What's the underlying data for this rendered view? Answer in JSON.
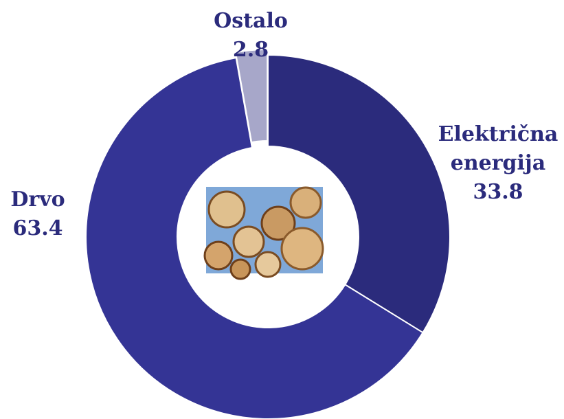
{
  "chart_data": {
    "type": "donut",
    "categories": [
      "Električna energija",
      "Drvo",
      "Ostalo"
    ],
    "values": [
      33.8,
      63.4,
      2.8
    ],
    "colors": [
      "#2b2b7c",
      "#343495",
      "#a7a7c9"
    ],
    "exploded": [
      false,
      false,
      true
    ]
  }
}
